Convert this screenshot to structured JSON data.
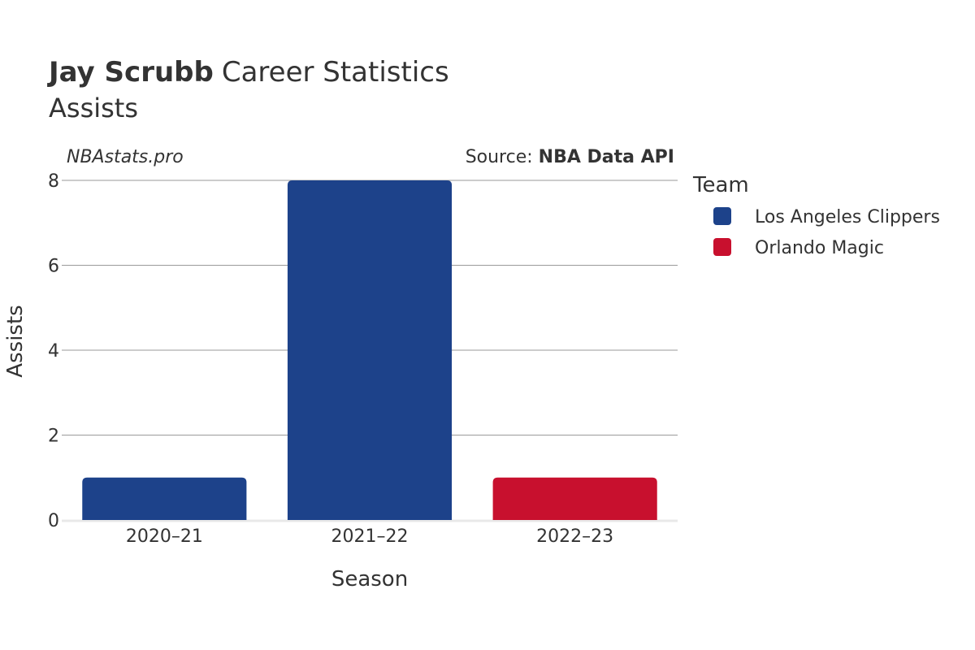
{
  "title": {
    "player": "Jay Scrubb",
    "rest": "Career Statistics",
    "subtitle": "Assists"
  },
  "watermark": "NBAstats.pro",
  "source": {
    "prefix": "Source: ",
    "name": "NBA Data API"
  },
  "legend_title": "Team",
  "chart_data": {
    "type": "bar",
    "categories": [
      "2020–21",
      "2021–22",
      "2022–23"
    ],
    "values": [
      1,
      8,
      1
    ],
    "bar_teams": [
      "Los Angeles Clippers",
      "Los Angeles Clippers",
      "Orlando Magic"
    ],
    "series": [
      {
        "name": "Los Angeles Clippers",
        "color": "#1d428a"
      },
      {
        "name": "Orlando Magic",
        "color": "#c8102e"
      }
    ],
    "xlabel": "Season",
    "ylabel": "Assists",
    "ylim": [
      0,
      8
    ],
    "yticks": [
      0,
      2,
      4,
      6,
      8
    ],
    "grid": true,
    "legend_position": "right"
  }
}
